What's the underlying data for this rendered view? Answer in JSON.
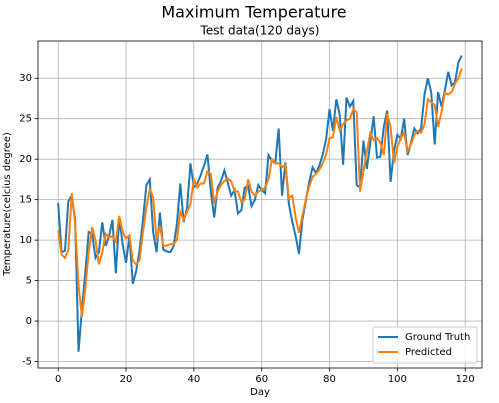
{
  "chart_data": {
    "type": "line",
    "title": "Maximum Temperature",
    "subtitle": "Test data(120 days)",
    "x_label": "Day",
    "y_label": "Temperature(celcius degree)",
    "x": [
      0,
      1,
      2,
      3,
      4,
      5,
      6,
      7,
      8,
      9,
      10,
      11,
      12,
      13,
      14,
      15,
      16,
      17,
      18,
      19,
      20,
      21,
      22,
      23,
      24,
      25,
      26,
      27,
      28,
      29,
      30,
      31,
      32,
      33,
      34,
      35,
      36,
      37,
      38,
      39,
      40,
      41,
      42,
      43,
      44,
      45,
      46,
      47,
      48,
      49,
      50,
      51,
      52,
      53,
      54,
      55,
      56,
      57,
      58,
      59,
      60,
      61,
      62,
      63,
      64,
      65,
      66,
      67,
      68,
      69,
      70,
      71,
      72,
      73,
      74,
      75,
      76,
      77,
      78,
      79,
      80,
      81,
      82,
      83,
      84,
      85,
      86,
      87,
      88,
      89,
      90,
      91,
      92,
      93,
      94,
      95,
      96,
      97,
      98,
      99,
      100,
      101,
      102,
      103,
      104,
      105,
      106,
      107,
      108,
      109,
      110,
      111,
      112,
      113,
      114,
      115,
      116,
      117,
      118,
      119
    ],
    "series": [
      {
        "name": "Ground Truth",
        "color": "#1f77b4",
        "values": [
          14.6,
          8.5,
          8.7,
          14.8,
          15.5,
          12.5,
          -3.8,
          1.5,
          6,
          11,
          10.8,
          7.8,
          8.5,
          12.2,
          9.3,
          10.5,
          12.5,
          5.9,
          12.8,
          9.5,
          7.2,
          10.5,
          4.6,
          6.2,
          8.8,
          12.5,
          16.8,
          17.5,
          11,
          8.5,
          13.4,
          8.8,
          8.6,
          8.5,
          9.2,
          12,
          17,
          12.2,
          14,
          19.5,
          16.5,
          17,
          18,
          19.2,
          20.6,
          16,
          12.8,
          16.5,
          17.3,
          18.6,
          17.1,
          15.5,
          16.2,
          13.3,
          13.7,
          16.5,
          16.7,
          14.2,
          15,
          16.8,
          16.2,
          15.8,
          20.5,
          19.8,
          19.5,
          23.8,
          15.5,
          19.6,
          14.5,
          12.3,
          10.5,
          8.3,
          12.5,
          14.8,
          17.2,
          19,
          18.3,
          19.2,
          20.6,
          22.5,
          26.2,
          23.5,
          27.4,
          25.5,
          19.3,
          27.6,
          26.5,
          27.2,
          16.8,
          16.5,
          22.3,
          18.8,
          22,
          25.3,
          20.2,
          20.3,
          24,
          26,
          17.2,
          21,
          23,
          22.5,
          25,
          20.5,
          22,
          23.8,
          23.2,
          23.8,
          28,
          30,
          28.2,
          21.8,
          28.3,
          26.5,
          28.5,
          30.8,
          29.1,
          29.5,
          32,
          32.8
        ]
      },
      {
        "name": "Predicted",
        "color": "#ff7f0e",
        "values": [
          11.2,
          8.2,
          7.8,
          8.8,
          15.8,
          12,
          4.5,
          0.5,
          4,
          8.5,
          11.6,
          10,
          7,
          8.5,
          10.8,
          10.3,
          10.5,
          9.8,
          13,
          11,
          10.2,
          10.6,
          7.5,
          7,
          7.5,
          11,
          14,
          16.3,
          15.3,
          10,
          11.8,
          9.3,
          9.3,
          9.5,
          9.5,
          10,
          13.5,
          12.5,
          13.5,
          14.5,
          17.5,
          16.5,
          17,
          17,
          18.5,
          18.2,
          14.5,
          16,
          16.8,
          17.3,
          17.6,
          17.3,
          16,
          16,
          14.7,
          15,
          17.5,
          16,
          15.5,
          16,
          16.2,
          16.5,
          17.5,
          20,
          19.5,
          19.5,
          19,
          19.3,
          15.2,
          15.5,
          12.8,
          10.9,
          13,
          15,
          16.6,
          17.8,
          18.2,
          18.7,
          19.5,
          20.6,
          22.6,
          22.7,
          25.2,
          23.6,
          24.3,
          24.8,
          25,
          26.2,
          25.8,
          16,
          18.5,
          21,
          23.2,
          22.4,
          22.6,
          22,
          20.5,
          25.6,
          24,
          19.5,
          21.5,
          22.6,
          23.3,
          21,
          21.8,
          23,
          23.5,
          23.3,
          24.3,
          27.4,
          27,
          26.7,
          24,
          25.8,
          28.2,
          28,
          28.3,
          29.3,
          30,
          31.2
        ]
      }
    ],
    "xlim": [
      -5.95,
      124.95
    ],
    "ylim": [
      -5.8,
      34.6
    ],
    "xticks": [
      0,
      20,
      40,
      60,
      80,
      100,
      120
    ],
    "yticks": [
      -5,
      0,
      5,
      10,
      15,
      20,
      25,
      30
    ],
    "grid": true,
    "legend": "lower right"
  }
}
